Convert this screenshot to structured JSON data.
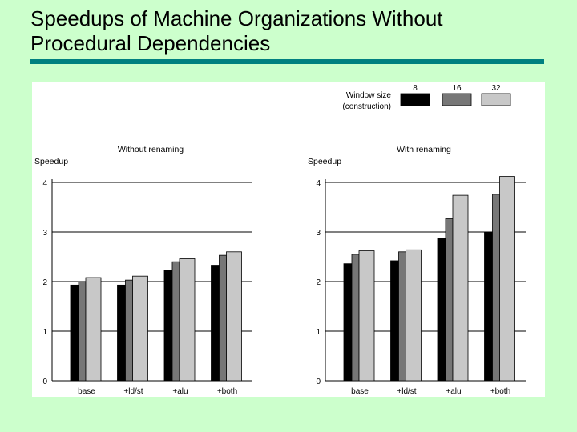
{
  "slide": {
    "title_line1": "Speedups of Machine Organizations Without",
    "title_line2": "Procedural Dependencies"
  },
  "colors": {
    "background": "#ccffcc",
    "rule": "#008080",
    "series": [
      "#000000",
      "#777777",
      "#c8c8c8"
    ]
  },
  "legend": {
    "title_line1": "Window size",
    "title_line2": "(construction)"
  },
  "chart_data": [
    {
      "type": "bar",
      "title": "Without renaming",
      "ylabel": "Speedup",
      "xlabel": "",
      "categories": [
        "base",
        "+ld/st",
        "+alu",
        "+both"
      ],
      "series": [
        {
          "name": "8",
          "values": [
            1.93,
            1.93,
            2.23,
            2.33
          ]
        },
        {
          "name": "16",
          "values": [
            2.0,
            2.03,
            2.4,
            2.53
          ]
        },
        {
          "name": "32",
          "values": [
            2.08,
            2.11,
            2.46,
            2.6
          ]
        }
      ],
      "ylim": [
        0,
        4
      ],
      "yticks": [
        0,
        1,
        2,
        3,
        4
      ],
      "grid": true,
      "legend": "top-right"
    },
    {
      "type": "bar",
      "title": "With renaming",
      "ylabel": "Speedup",
      "xlabel": "",
      "categories": [
        "base",
        "+ld/st",
        "+alu",
        "+both"
      ],
      "series": [
        {
          "name": "8",
          "values": [
            2.36,
            2.42,
            2.87,
            3.0
          ]
        },
        {
          "name": "16",
          "values": [
            2.55,
            2.6,
            3.27,
            3.76
          ]
        },
        {
          "name": "32",
          "values": [
            2.62,
            2.64,
            3.74,
            4.12
          ]
        }
      ],
      "ylim": [
        0,
        4
      ],
      "yticks": [
        0,
        1,
        2,
        3,
        4
      ],
      "grid": true,
      "legend": "top-right"
    }
  ]
}
